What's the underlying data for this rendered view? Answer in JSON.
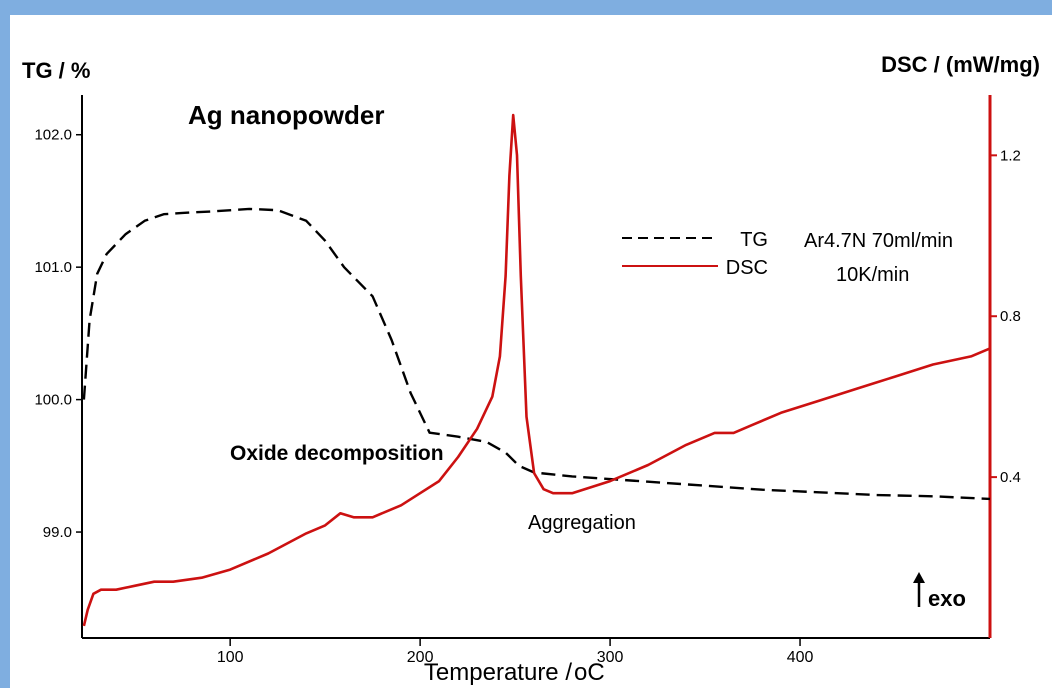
{
  "chart_data": {
    "type": "line",
    "title": "Ag nanopowder",
    "xlabel": "Temperature / ",
    "xlabel_unit": "oC",
    "ylabel_left": "TG / %",
    "ylabel_right": "DSC / (mW/mg)",
    "xlim": [
      22,
      500
    ],
    "ylim_left": [
      98.2,
      102.3
    ],
    "ylim_right": [
      0.0,
      1.35
    ],
    "x_ticks": [
      100,
      200,
      300,
      400
    ],
    "y_left_ticks": [
      99.0,
      100.0,
      101.0,
      102.0
    ],
    "y_left_tick_labels": [
      "99.0",
      "100.0",
      "101.0",
      "102.0"
    ],
    "y_right_ticks": [
      0.4,
      0.8,
      1.2
    ],
    "y_right_tick_labels": [
      "0.4",
      "0.8",
      "1.2"
    ],
    "legend_position": "top-right",
    "series": [
      {
        "name": "TG",
        "axis": "left",
        "color": "#000000",
        "style": "dashed",
        "x": [
          23,
          26,
          30,
          35,
          45,
          55,
          65,
          75,
          90,
          110,
          125,
          140,
          150,
          160,
          175,
          185,
          195,
          205,
          220,
          235,
          245,
          252,
          260,
          280,
          300,
          320,
          350,
          380,
          410,
          440,
          470,
          500
        ],
        "y": [
          100.0,
          100.6,
          100.95,
          101.1,
          101.25,
          101.35,
          101.4,
          101.41,
          101.42,
          101.44,
          101.43,
          101.35,
          101.2,
          101.0,
          100.78,
          100.45,
          100.05,
          99.75,
          99.72,
          99.68,
          99.6,
          99.5,
          99.45,
          99.42,
          99.4,
          99.38,
          99.35,
          99.32,
          99.3,
          99.28,
          99.27,
          99.25
        ]
      },
      {
        "name": "DSC",
        "axis": "right",
        "color": "#cc1111",
        "style": "solid",
        "x": [
          23,
          25,
          28,
          32,
          40,
          50,
          60,
          70,
          85,
          100,
          120,
          140,
          150,
          158,
          165,
          175,
          190,
          200,
          210,
          220,
          230,
          238,
          242,
          245,
          247,
          249,
          251,
          253,
          256,
          260,
          265,
          270,
          280,
          300,
          320,
          340,
          355,
          365,
          375,
          390,
          410,
          430,
          450,
          470,
          490,
          500
        ],
        "y": [
          0.03,
          0.07,
          0.11,
          0.12,
          0.12,
          0.13,
          0.14,
          0.14,
          0.15,
          0.17,
          0.21,
          0.26,
          0.28,
          0.31,
          0.3,
          0.3,
          0.33,
          0.36,
          0.39,
          0.45,
          0.52,
          0.6,
          0.7,
          0.9,
          1.15,
          1.3,
          1.2,
          0.9,
          0.55,
          0.41,
          0.37,
          0.36,
          0.36,
          0.39,
          0.43,
          0.48,
          0.51,
          0.51,
          0.53,
          0.56,
          0.59,
          0.62,
          0.65,
          0.68,
          0.7,
          0.72
        ]
      }
    ],
    "annotations": {
      "conditions_line1": "Ar4.7N 70ml/min",
      "conditions_line2": "10K/min",
      "oxide": "Oxide decomposition",
      "aggregation": "Aggregation",
      "exo": "exo"
    }
  }
}
